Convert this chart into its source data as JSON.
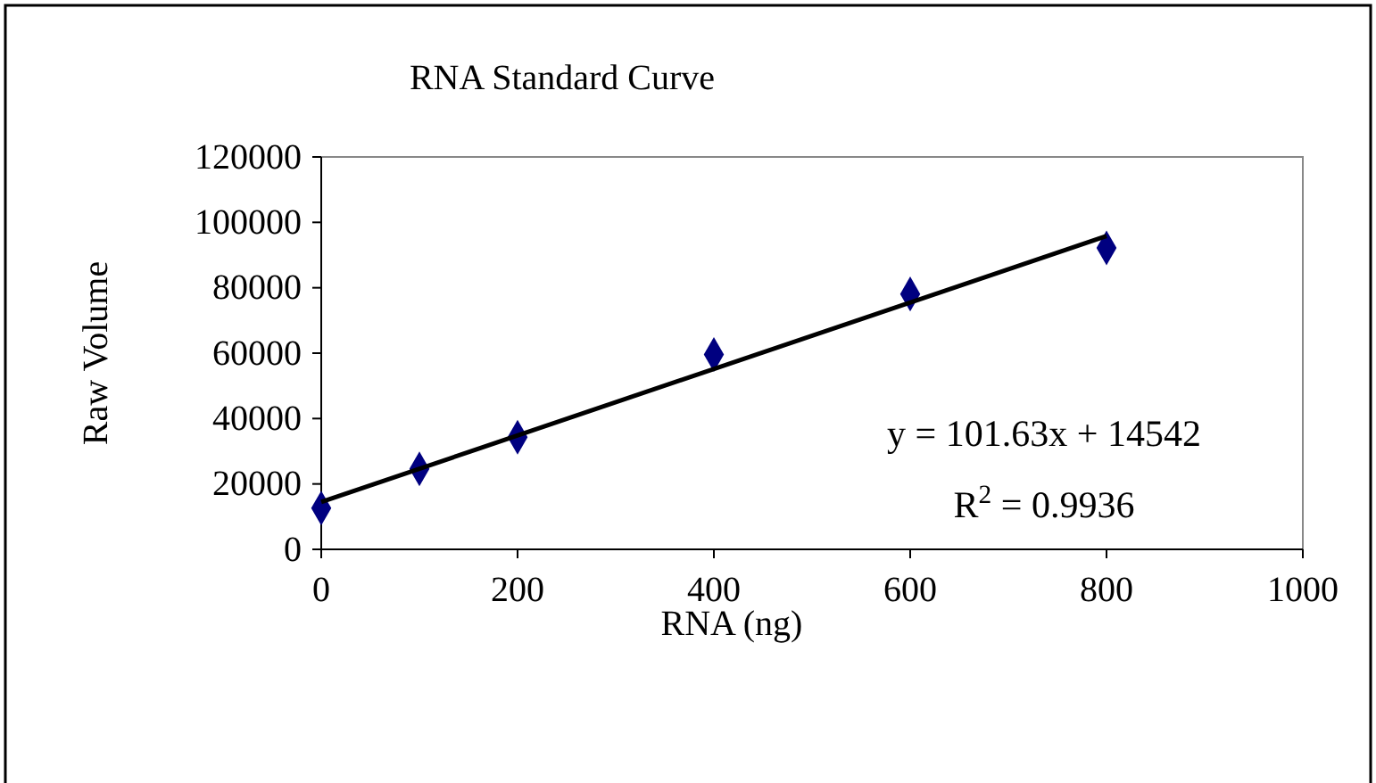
{
  "chart_data": {
    "type": "scatter",
    "title": "RNA Standard Curve",
    "xlabel": "RNA (ng)",
    "ylabel": "Raw Volume",
    "x": [
      0,
      100,
      200,
      400,
      600,
      800
    ],
    "series": [
      {
        "color": "#000080",
        "marker": "diamond",
        "values": [
          12600,
          24600,
          34300,
          59600,
          78100,
          92200
        ]
      },
      {
        "type": "line",
        "color": "#000000",
        "marker": "none",
        "line_style": "solid",
        "x": [
          0,
          800
        ],
        "values": [
          14500,
          95800
        ]
      }
    ],
    "xlim": [
      0,
      1000
    ],
    "xticks": [
      0,
      200,
      400,
      600,
      800,
      1000
    ],
    "ylim": [
      0,
      120000
    ],
    "yticks": [
      0,
      20000,
      40000,
      60000,
      80000,
      100000,
      120000
    ],
    "grid": false,
    "annotations": [
      "y = 101.63x + 14542",
      "R$^{2}$ = 0.9936"
    ]
  }
}
